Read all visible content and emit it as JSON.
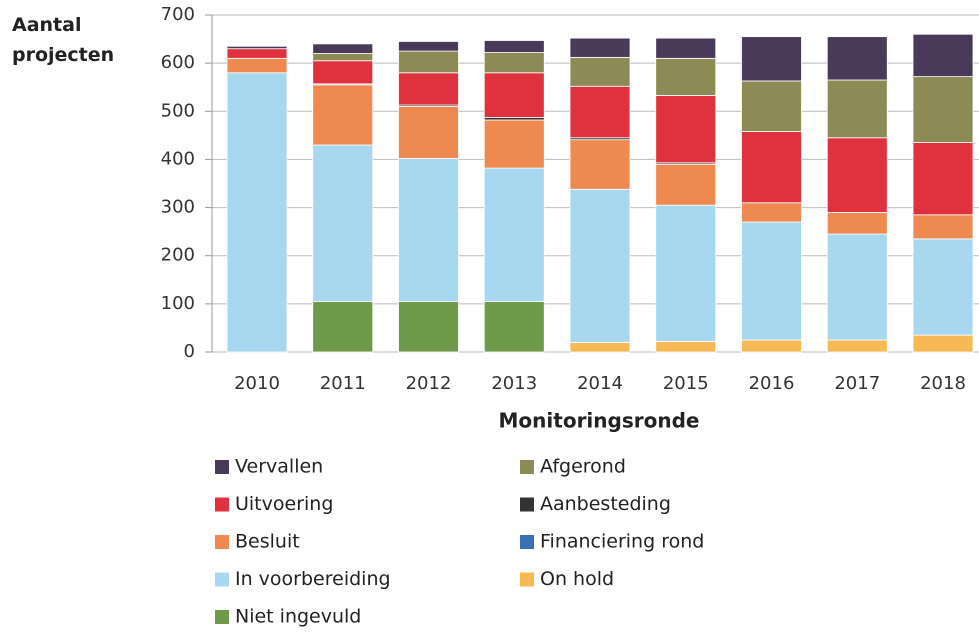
{
  "chart_data": {
    "type": "bar",
    "stacked": true,
    "y_label": "Aantal projecten",
    "x_label": "Monitoringsronde",
    "categories": [
      "2010",
      "2011",
      "2012",
      "2013",
      "2014",
      "2015",
      "2016",
      "2017",
      "2018"
    ],
    "ylim": [
      0,
      700
    ],
    "yticks": [
      0,
      100,
      200,
      300,
      400,
      500,
      600,
      700
    ],
    "grid": true,
    "series": [
      {
        "name": "Niet ingevuld",
        "color": "#6e9a4a",
        "values": [
          0,
          105,
          105,
          105,
          0,
          0,
          0,
          0,
          0
        ]
      },
      {
        "name": "On hold",
        "color": "#f7b955",
        "values": [
          0,
          0,
          0,
          0,
          20,
          22,
          25,
          25,
          35
        ]
      },
      {
        "name": "In voorbereiding",
        "color": "#a8d8ef",
        "values": [
          580,
          325,
          297,
          277,
          318,
          283,
          245,
          220,
          200
        ]
      },
      {
        "name": "Financiering rond",
        "color": "#3a6fb5",
        "values": [
          0,
          0,
          0,
          0,
          0,
          0,
          0,
          0,
          0
        ]
      },
      {
        "name": "Besluit",
        "color": "#ee8a50",
        "values": [
          30,
          125,
          108,
          100,
          103,
          85,
          40,
          45,
          50
        ]
      },
      {
        "name": "Aanbesteding",
        "color": "#333333",
        "values": [
          0,
          2,
          3,
          5,
          4,
          3,
          0,
          0,
          0
        ]
      },
      {
        "name": "Uitvoering",
        "color": "#e0313f",
        "values": [
          20,
          48,
          67,
          93,
          107,
          140,
          148,
          155,
          150
        ]
      },
      {
        "name": "Afgerond",
        "color": "#8c8a55",
        "values": [
          0,
          15,
          45,
          42,
          60,
          77,
          105,
          120,
          137
        ]
      },
      {
        "name": "Vervallen",
        "color": "#4a3a5a",
        "values": [
          5,
          20,
          20,
          25,
          40,
          42,
          92,
          90,
          88
        ]
      }
    ]
  }
}
